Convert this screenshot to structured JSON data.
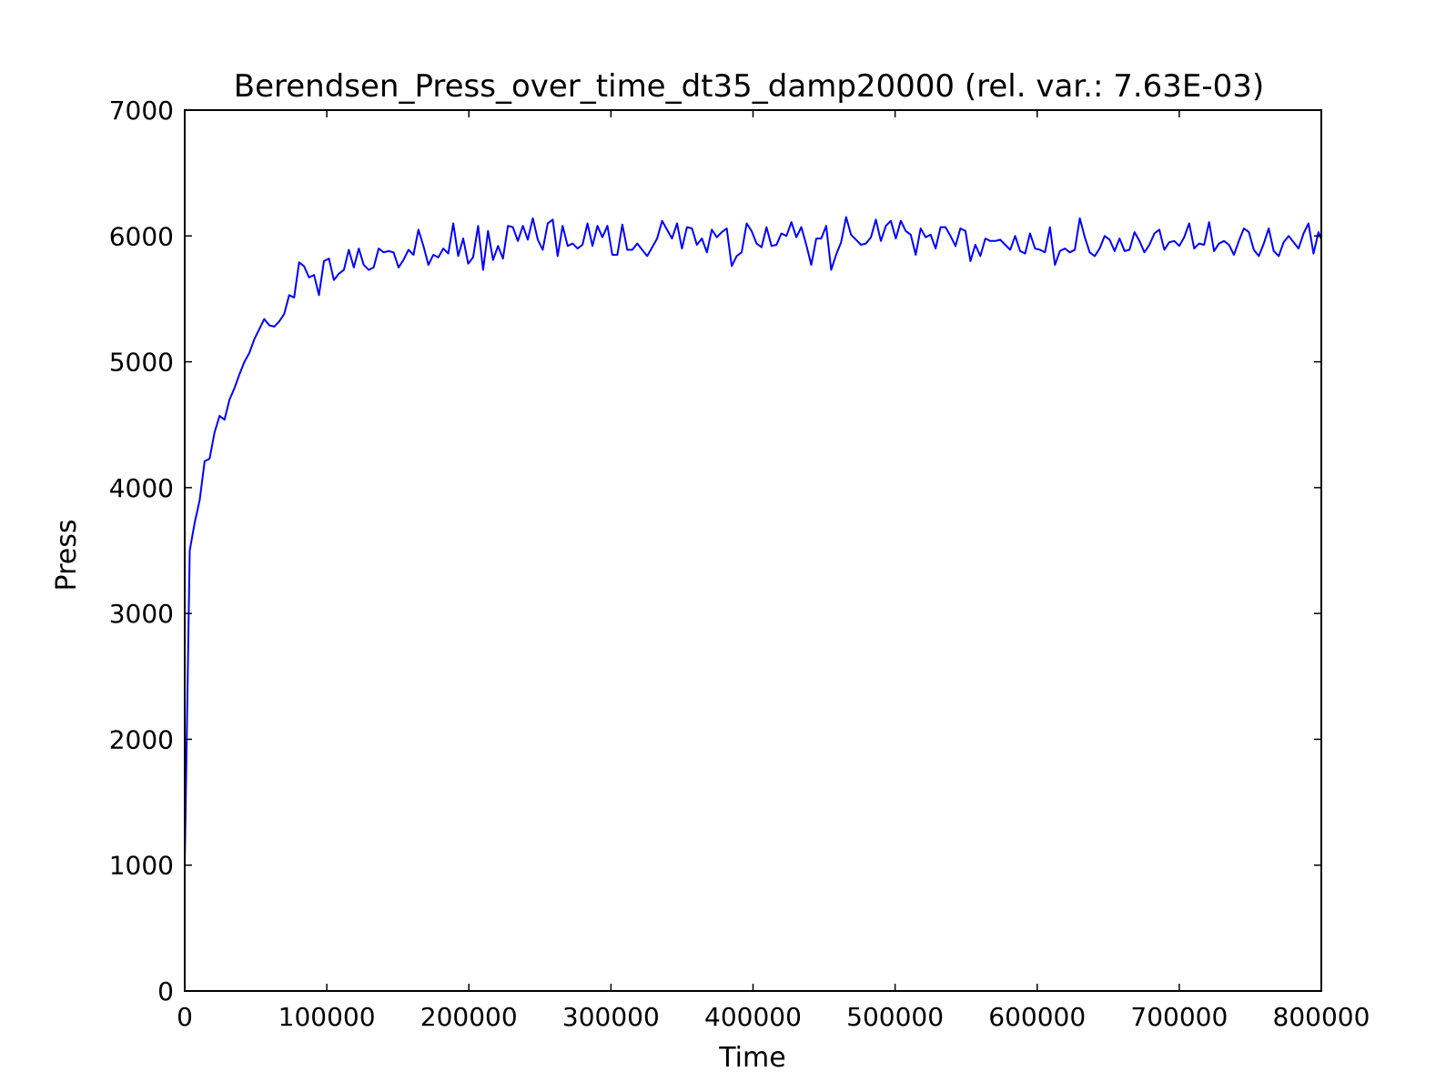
{
  "chart_data": {
    "type": "line",
    "title": "Berendsen_Press_over_time_dt35_damp20000 (rel. var.: 7.63E-03)",
    "xlabel": "Time",
    "ylabel": "Press",
    "xlim": [
      0,
      800000
    ],
    "ylim": [
      0,
      7000
    ],
    "xticks": [
      0,
      100000,
      200000,
      300000,
      400000,
      500000,
      600000,
      700000,
      800000
    ],
    "xtick_labels": [
      "0",
      "100000",
      "200000",
      "300000",
      "400000",
      "500000",
      "600000",
      "700000",
      "800000"
    ],
    "yticks": [
      0,
      1000,
      2000,
      3000,
      4000,
      5000,
      6000,
      7000
    ],
    "ytick_labels": [
      "0",
      "1000",
      "2000",
      "3000",
      "4000",
      "5000",
      "6000",
      "7000"
    ],
    "grid": false,
    "series": [
      {
        "color": "#0000ff",
        "x": [
          0,
          3500,
          7000,
          10500,
          14000,
          17500,
          21000,
          24500,
          28000,
          31500,
          35000,
          38500,
          42000,
          45500,
          49000,
          52500,
          56000,
          59500,
          63000,
          66500,
          70000,
          73500,
          77000,
          80500,
          84000,
          87500,
          91000,
          94500,
          98000,
          101500,
          105000,
          108500,
          112000,
          115500,
          119000,
          122500,
          126000,
          129500,
          133000,
          136500,
          140000,
          143500,
          147000,
          150500,
          154000,
          157500,
          161000,
          164500,
          168000,
          171500,
          175000,
          178500,
          182000,
          185500,
          189000,
          192500,
          196000,
          199500,
          203000,
          206500,
          210000,
          213500,
          217000,
          220500,
          224000,
          227500,
          231000,
          234500,
          238000,
          241500,
          245000,
          248500,
          252000,
          255500,
          259000,
          262500,
          266000,
          269500,
          273000,
          276500,
          280000,
          283500,
          287000,
          290500,
          294000,
          297500,
          301000,
          304500,
          308000,
          311500,
          315000,
          318500,
          322000,
          325500,
          329000,
          332500,
          336000,
          339500,
          343000,
          346500,
          350000,
          353500,
          357000,
          360500,
          364000,
          367500,
          371000,
          374500,
          378000,
          381500,
          385000,
          388500,
          392000,
          395500,
          399000,
          402500,
          406000,
          409500,
          413000,
          416500,
          420000,
          423500,
          427000,
          430500,
          434000,
          437500,
          441000,
          444500,
          448000,
          451500,
          455000,
          458500,
          462000,
          465500,
          469000,
          472500,
          476000,
          479500,
          483000,
          486500,
          490000,
          493500,
          497000,
          500500,
          504000,
          507500,
          511000,
          514500,
          518000,
          521500,
          525000,
          528500,
          532000,
          535500,
          539000,
          542500,
          546000,
          549500,
          553000,
          556500,
          560000,
          563500,
          567000,
          570500,
          574000,
          577500,
          581000,
          584500,
          588000,
          591500,
          595000,
          598500,
          602000,
          605500,
          609000,
          612500,
          616000,
          619500,
          623000,
          626500,
          630000,
          633500,
          637000,
          640500,
          644000,
          647500,
          651000,
          654500,
          658000,
          661500,
          665000,
          668500,
          672000,
          675500,
          679000,
          682500,
          686000,
          689500,
          693000,
          696500,
          700000,
          703500,
          707000,
          710500,
          714000,
          717500,
          721000,
          724500,
          728000,
          731500,
          735000,
          738500,
          742000,
          745500,
          749000,
          752500,
          756000,
          759500,
          763000,
          766500,
          770000,
          773500,
          777000,
          780500,
          784000,
          787500,
          791000,
          794500,
          798000,
          800000
        ],
        "y": [
          1000,
          3500,
          3720,
          3900,
          4210,
          4230,
          4440,
          4570,
          4540,
          4700,
          4790,
          4900,
          5000,
          5070,
          5180,
          5260,
          5340,
          5290,
          5280,
          5320,
          5380,
          5530,
          5510,
          5790,
          5760,
          5670,
          5690,
          5530,
          5800,
          5820,
          5650,
          5700,
          5730,
          5890,
          5750,
          5900,
          5770,
          5730,
          5750,
          5900,
          5870,
          5880,
          5870,
          5750,
          5810,
          5890,
          5850,
          6050,
          5920,
          5770,
          5850,
          5830,
          5900,
          5860,
          6100,
          5840,
          5980,
          5780,
          5830,
          6080,
          5730,
          6040,
          5810,
          5920,
          5820,
          6080,
          6070,
          5960,
          6080,
          5970,
          6140,
          5970,
          5890,
          6100,
          6130,
          5840,
          6080,
          5920,
          5940,
          5900,
          5930,
          6100,
          5920,
          6080,
          5990,
          6080,
          5850,
          5850,
          6090,
          5890,
          5890,
          5940,
          5890,
          5840,
          5910,
          5980,
          6120,
          6050,
          5980,
          6100,
          5900,
          6070,
          6060,
          5930,
          5980,
          5870,
          6050,
          5990,
          6030,
          6060,
          5760,
          5840,
          5870,
          6100,
          6040,
          5940,
          5910,
          6070,
          5920,
          5930,
          6020,
          6000,
          6110,
          5990,
          6070,
          5930,
          5770,
          5980,
          5980,
          6080,
          5730,
          5850,
          5950,
          6150,
          6010,
          5970,
          5930,
          5940,
          5990,
          6130,
          5960,
          6080,
          6120,
          5980,
          6120,
          6040,
          6010,
          5850,
          6060,
          5990,
          6010,
          5900,
          6070,
          6070,
          6000,
          5920,
          6060,
          6040,
          5800,
          5930,
          5840,
          5980,
          5960,
          5960,
          5970,
          5930,
          5890,
          6000,
          5880,
          5860,
          6020,
          5900,
          5890,
          5870,
          6070,
          5770,
          5880,
          5900,
          5870,
          5890,
          6140,
          5990,
          5870,
          5840,
          5900,
          6000,
          5970,
          5880,
          5980,
          5880,
          5890,
          6030,
          5960,
          5870,
          5930,
          6020,
          6050,
          5890,
          5950,
          5960,
          5920,
          5990,
          6100,
          5900,
          5940,
          5930,
          6110,
          5880,
          5940,
          5960,
          5930,
          5850,
          5960,
          6060,
          6030,
          5890,
          5840,
          5940,
          6060,
          5880,
          5840,
          5950,
          6000,
          5950,
          5900,
          6020,
          6100,
          5860,
          6030,
          5970
        ]
      }
    ]
  }
}
